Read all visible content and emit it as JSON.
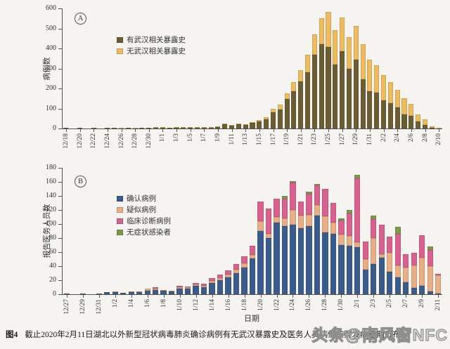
{
  "figure": {
    "caption_label": "图4",
    "caption_text": "截止2020年2月11日湖北以外新型冠状病毒肺炎确诊病例有无武汉暴露史及医务人员病例按照发病日期分布",
    "watermark": "头条@南风窗NFC",
    "background": "#f5f4f1",
    "axis_color": "#555555"
  },
  "chart_data": [
    {
      "type": "bar",
      "stacked": true,
      "panel_label": "A",
      "ylabel": "病例数",
      "xlabel": "",
      "ylim": [
        0,
        600
      ],
      "ytick_step": 100,
      "xtick_step": 2,
      "legend_position": "upper-left-inside",
      "grid": false,
      "categories": [
        "12/18",
        "12/19",
        "12/20",
        "12/21",
        "12/22",
        "12/23",
        "12/24",
        "12/25",
        "12/26",
        "12/27",
        "12/28",
        "12/29",
        "12/30",
        "12/31",
        "1/1",
        "1/2",
        "1/3",
        "1/4",
        "1/5",
        "1/6",
        "1/7",
        "1/8",
        "1/9",
        "1/10",
        "1/11",
        "1/12",
        "1/13",
        "1/14",
        "1/15",
        "1/16",
        "1/17",
        "1/18",
        "1/19",
        "1/20",
        "1/21",
        "1/22",
        "1/23",
        "1/24",
        "1/25",
        "1/26",
        "1/27",
        "1/28",
        "1/29",
        "1/30",
        "1/31",
        "2/1",
        "2/2",
        "2/3",
        "2/4",
        "2/5",
        "2/6",
        "2/7",
        "2/8",
        "2/9",
        "2/10"
      ],
      "series": [
        {
          "name": "有武汉相关暴露史",
          "color": "#6a5c33",
          "values": [
            1,
            0,
            1,
            0,
            1,
            0,
            1,
            1,
            1,
            1,
            1,
            1,
            2,
            2,
            2,
            2,
            3,
            2,
            3,
            3,
            4,
            5,
            8,
            21,
            14,
            21,
            18,
            28,
            35,
            45,
            82,
            95,
            148,
            185,
            235,
            280,
            370,
            420,
            407,
            319,
            386,
            298,
            344,
            246,
            186,
            179,
            140,
            126,
            105,
            70,
            63,
            35,
            18,
            4,
            1
          ]
        },
        {
          "name": "无武汉相关暴露史",
          "color": "#eebc5e",
          "values": [
            0,
            0,
            0,
            0,
            0,
            0,
            0,
            0,
            1,
            0,
            1,
            0,
            0,
            1,
            1,
            0,
            1,
            1,
            1,
            1,
            1,
            1,
            2,
            4,
            3,
            4,
            4,
            5,
            7,
            10,
            18,
            25,
            27,
            45,
            55,
            90,
            100,
            130,
            176,
            172,
            168,
            158,
            168,
            175,
            158,
            137,
            127,
            106,
            88,
            81,
            60,
            35,
            28,
            7,
            2
          ]
        }
      ]
    },
    {
      "type": "bar",
      "stacked": true,
      "panel_label": "B",
      "ylabel": "报告医务人员数",
      "xlabel": "日期",
      "ylim": [
        0,
        180
      ],
      "ytick_step": 20,
      "xtick_step": 2,
      "legend_position": "upper-left-inside",
      "grid": false,
      "categories": [
        "12/27",
        "12/28",
        "12/29",
        "12/30",
        "12/31",
        "1/1",
        "1/2",
        "1/3",
        "1/4",
        "1/5",
        "1/6",
        "1/7",
        "1/8",
        "1/9",
        "1/10",
        "1/11",
        "1/12",
        "1/13",
        "1/14",
        "1/15",
        "1/16",
        "1/17",
        "1/18",
        "1/19",
        "1/20",
        "1/21",
        "1/22",
        "1/23",
        "1/24",
        "1/25",
        "1/26",
        "1/27",
        "1/28",
        "1/29",
        "1/30",
        "1/31",
        "2/1",
        "2/2",
        "2/3",
        "2/4",
        "2/5",
        "2/6",
        "2/7",
        "2/8",
        "2/9",
        "2/10",
        "2/11"
      ],
      "series": [
        {
          "name": "确认病例",
          "color": "#3a5b8e",
          "values": [
            1,
            0,
            1,
            0,
            1,
            3,
            3,
            2,
            3,
            3,
            5,
            6,
            5,
            4,
            8,
            8,
            12,
            10,
            16,
            20,
            24,
            30,
            38,
            51,
            90,
            80,
            102,
            97,
            99,
            94,
            97,
            112,
            88,
            86,
            70,
            69,
            67,
            35,
            43,
            52,
            32,
            24,
            17,
            9,
            12,
            4,
            1
          ]
        },
        {
          "name": "疑似病例",
          "color": "#e9ae85",
          "values": [
            0,
            0,
            0,
            0,
            0,
            0,
            1,
            0,
            1,
            1,
            3,
            2,
            1,
            1,
            2,
            2,
            2,
            2,
            3,
            3,
            4,
            5,
            6,
            5,
            14,
            6,
            8,
            11,
            21,
            18,
            16,
            15,
            23,
            16,
            15,
            14,
            7,
            15,
            37,
            5,
            27,
            17,
            21,
            32,
            40,
            36,
            26
          ]
        },
        {
          "name": "临床诊断病例",
          "color": "#da6090",
          "values": [
            0,
            0,
            0,
            0,
            0,
            0,
            0,
            0,
            0,
            0,
            0,
            2,
            0,
            0,
            2,
            1,
            2,
            3,
            4,
            5,
            6,
            8,
            10,
            13,
            28,
            36,
            26,
            28,
            39,
            20,
            30,
            28,
            39,
            28,
            20,
            32,
            91,
            25,
            27,
            42,
            23,
            45,
            19,
            18,
            32,
            23,
            2
          ]
        },
        {
          "name": "无症状感染者",
          "color": "#7b9b4c",
          "values": [
            0,
            0,
            0,
            0,
            0,
            0,
            0,
            0,
            0,
            0,
            0,
            0,
            0,
            0,
            0,
            0,
            0,
            0,
            0,
            0,
            0,
            0,
            0,
            0,
            0,
            0,
            0,
            4,
            2,
            0,
            3,
            2,
            0,
            0,
            3,
            5,
            5,
            0,
            5,
            0,
            0,
            10,
            0,
            0,
            0,
            5,
            0
          ]
        }
      ]
    }
  ]
}
